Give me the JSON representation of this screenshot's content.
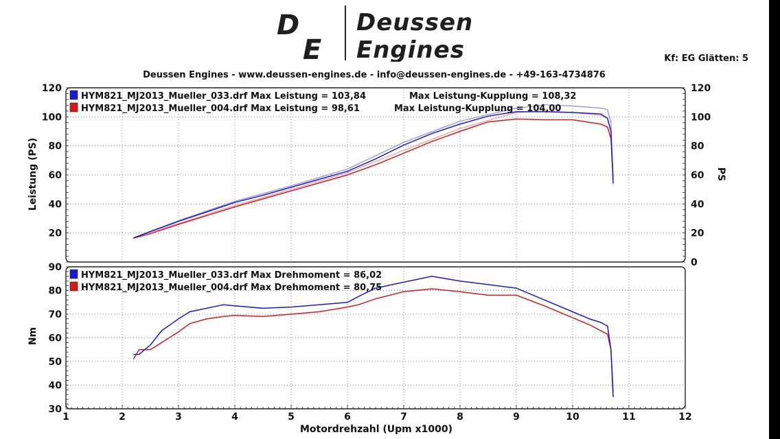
{
  "header": {
    "logo_initials": "DE",
    "logo_word1": "Deussen",
    "logo_word2": "Engines",
    "kf_text": "Kf: EG  Glätten: 5",
    "subtitle": "Deussen Engines - www.deussen-engines.de - info@deussen-engines.de - +49-163-4734876"
  },
  "colors": {
    "run033": "#1a1ad6",
    "run004": "#d81818",
    "run033_clutch": "#8a8aee",
    "run004_clutch": "#ee9a9a"
  },
  "chart_data": [
    {
      "type": "line",
      "id": "power",
      "ylabel": "Leistung (PS)",
      "ylabel_right": "PS",
      "xlim": [
        1,
        12
      ],
      "ylim": [
        0,
        120
      ],
      "yticks": [
        20,
        40,
        60,
        80,
        100,
        120
      ],
      "yticks_right": [
        0,
        20,
        40,
        60,
        80,
        100,
        120
      ],
      "grid": true,
      "legend": [
        {
          "text": "HYM821_MJ2013_Mueller_033.drf Max Leistung = 103,84",
          "text2": "Max Leistung-Kupplung = 108,32"
        },
        {
          "text": "HYM821_MJ2013_Mueller_004.drf Max Leistung = 98,61",
          "text2": "Max Leistung-Kupplung = 104,00"
        }
      ],
      "series": [
        {
          "x": [
            2.2,
            2.5,
            3.0,
            3.5,
            4.0,
            4.5,
            5.0,
            5.5,
            6.0,
            6.5,
            7.0,
            7.5,
            8.0,
            8.5,
            9.0,
            9.5,
            10.0,
            10.5,
            10.62,
            10.68,
            10.72
          ],
          "values": [
            16.5,
            21,
            28,
            34.5,
            41,
            46,
            51.5,
            57,
            62.5,
            71,
            80.5,
            88.5,
            95,
            100.5,
            103.5,
            103.5,
            103,
            102,
            99,
            90,
            54
          ]
        },
        {
          "x": [
            2.2,
            2.5,
            3.0,
            3.5,
            4.0,
            4.5,
            5.0,
            5.5,
            6.0,
            6.5,
            7.0,
            7.5,
            8.0,
            8.5,
            9.0,
            9.5,
            10.0,
            10.5,
            10.62,
            10.68,
            10.72
          ],
          "values": [
            16.5,
            19.5,
            26,
            32,
            38,
            43.5,
            49,
            54.5,
            60,
            67,
            75,
            83,
            90,
            96.5,
            98.5,
            98,
            98,
            95,
            93,
            85,
            57
          ]
        },
        {
          "x": [
            2.2,
            3.0,
            4.0,
            5.0,
            6.0,
            7.0,
            8.0,
            9.0,
            9.5,
            10.0,
            10.5,
            10.62,
            10.68,
            10.72
          ],
          "values": [
            16.8,
            28.5,
            41.8,
            52.5,
            64,
            82.5,
            97,
            106,
            108.3,
            107.5,
            106,
            105,
            96,
            57
          ]
        },
        {
          "x": [
            2.2,
            3.0,
            4.0,
            5.0,
            6.0,
            7.0,
            8.0,
            9.0,
            9.5,
            10.0,
            10.5,
            10.62,
            10.68,
            10.72
          ],
          "values": [
            16.8,
            26.5,
            39,
            50,
            61.5,
            77,
            92,
            103,
            104,
            103,
            101,
            99,
            91,
            60
          ]
        }
      ]
    },
    {
      "type": "line",
      "id": "torque",
      "xlabel": "Motordrehzahl (Upm x1000)",
      "ylabel": "Nm",
      "xlim": [
        1,
        12
      ],
      "ylim": [
        30,
        90
      ],
      "xticks": [
        1,
        2,
        3,
        4,
        5,
        6,
        7,
        8,
        9,
        10,
        11,
        12
      ],
      "yticks": [
        30,
        40,
        50,
        60,
        70,
        80,
        90
      ],
      "grid": true,
      "legend": [
        {
          "text": "HYM821_MJ2013_Mueller_033.drf Max Drehmoment = 86,02"
        },
        {
          "text": "HYM821_MJ2013_Mueller_004.drf Max Drehmoment = 80,75"
        }
      ],
      "series": [
        {
          "x": [
            2.2,
            2.3,
            2.5,
            2.7,
            3.0,
            3.2,
            3.5,
            3.8,
            4.0,
            4.5,
            5.0,
            5.5,
            6.0,
            6.2,
            6.5,
            7.0,
            7.5,
            8.0,
            8.5,
            9.0,
            9.5,
            10.0,
            10.3,
            10.5,
            10.62,
            10.68,
            10.72
          ],
          "values": [
            53,
            53,
            57,
            63,
            68,
            71,
            72.5,
            74,
            73.5,
            72.5,
            73,
            74,
            75,
            77.5,
            81,
            83.5,
            86,
            84,
            82.5,
            81,
            76,
            71,
            68,
            66.5,
            65,
            55,
            35
          ]
        },
        {
          "x": [
            2.2,
            2.3,
            2.5,
            2.7,
            3.0,
            3.2,
            3.5,
            3.8,
            4.0,
            4.5,
            5.0,
            5.5,
            6.0,
            6.2,
            6.5,
            7.0,
            7.5,
            8.0,
            8.5,
            9.0,
            9.5,
            10.0,
            10.3,
            10.5,
            10.62,
            10.68,
            10.72
          ],
          "values": [
            51,
            55,
            55,
            58,
            62.5,
            66,
            68,
            69,
            69.5,
            69,
            70,
            71,
            73,
            74,
            76.5,
            79.5,
            80.7,
            79.5,
            78,
            78,
            73.5,
            68.5,
            65.5,
            63,
            61.5,
            55,
            37
          ]
        }
      ]
    }
  ]
}
